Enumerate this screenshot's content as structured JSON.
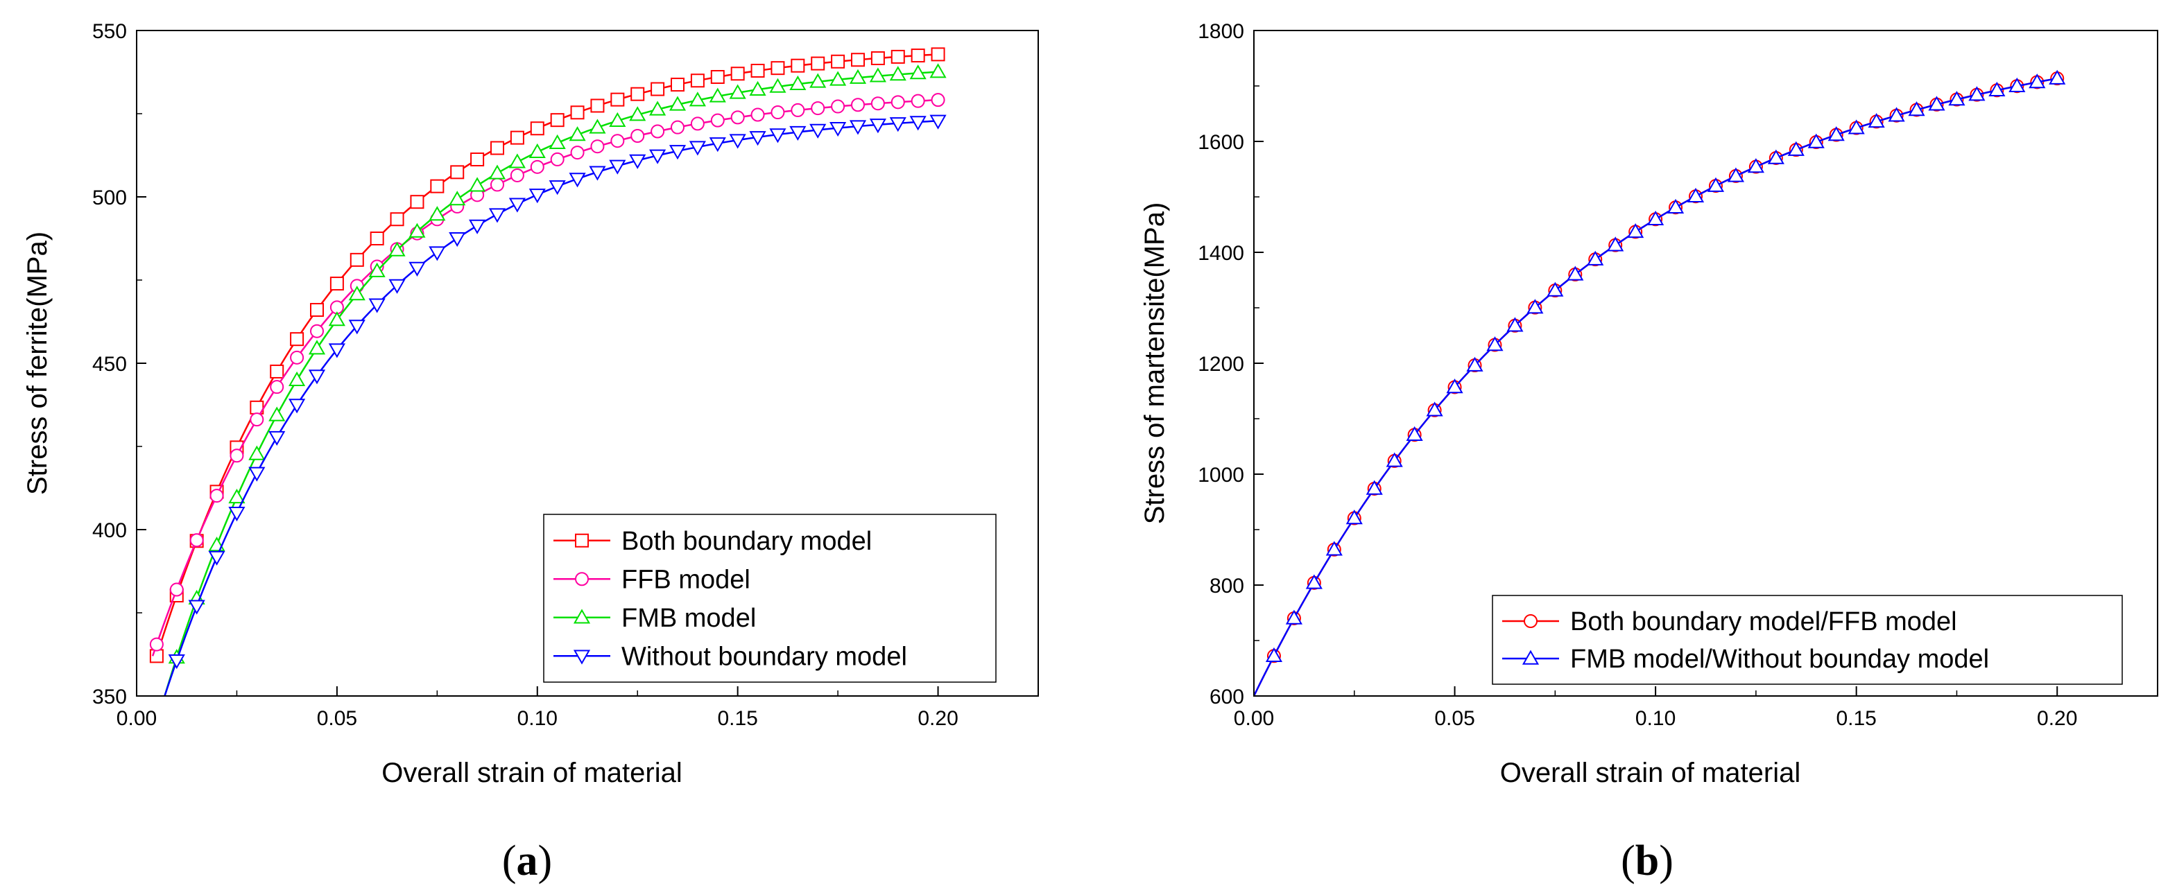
{
  "chart_data": [
    {
      "type": "line",
      "panel_label": "(a)",
      "panel_letter": "a",
      "xlabel": "Overall strain of material",
      "ylabel": "Stress of ferrite(MPa)",
      "xlim": [
        0.0,
        0.225
      ],
      "ylim": [
        350,
        550
      ],
      "xticks": [
        0.0,
        0.05,
        0.1,
        0.15,
        0.2
      ],
      "xtick_labels": [
        "0.00",
        "0.05",
        "0.10",
        "0.15",
        "0.20"
      ],
      "yticks": [
        350,
        400,
        450,
        500,
        550
      ],
      "ytick_labels": [
        "350",
        "400",
        "450",
        "500",
        "550"
      ],
      "legend_position": "lower-right",
      "series": [
        {
          "name": "Both boundary model",
          "color": "#ff0000",
          "marker": "square",
          "x0": 0.005,
          "y0": 362,
          "ymax": 546,
          "ycurve": 184,
          "rate": 0.048
        },
        {
          "name": "FFB model",
          "color": "#ff00a0",
          "marker": "circle",
          "x0": 0.004,
          "y0": 362,
          "ymax": 532,
          "ycurve": 170,
          "rate": 0.048
        },
        {
          "name": "FMB model",
          "color": "#00e000",
          "marker": "triangle-up",
          "x0": 0.007,
          "y0": 350,
          "ymax": 541,
          "ycurve": 191,
          "rate": 0.048
        },
        {
          "name": "Without boundary model",
          "color": "#0000ff",
          "marker": "triangle-down",
          "x0": 0.007,
          "y0": 350,
          "ymax": 526,
          "ycurve": 176,
          "rate": 0.048
        }
      ]
    },
    {
      "type": "line",
      "panel_label": "(b)",
      "panel_letter": "b",
      "xlabel": "Overall strain of material",
      "ylabel": "Stress of martensite(MPa)",
      "xlim": [
        0.0,
        0.225
      ],
      "ylim": [
        600,
        1800
      ],
      "xticks": [
        0.0,
        0.05,
        0.1,
        0.15,
        0.2
      ],
      "xtick_labels": [
        "0.00",
        "0.05",
        "0.10",
        "0.15",
        "0.20"
      ],
      "yticks": [
        600,
        800,
        1000,
        1200,
        1400,
        1600,
        1800
      ],
      "ytick_labels": [
        "600",
        "800",
        "1000",
        "1200",
        "1400",
        "1600",
        "1800"
      ],
      "legend_position": "lower-right",
      "series": [
        {
          "name": "Both boundary model/FFB model",
          "color": "#ff0000",
          "marker": "circle",
          "x0": 0.0,
          "y0": 600,
          "ymax": 1820,
          "ycurve": 1220,
          "rate": 0.082
        },
        {
          "name": "FMB model/Without bounday model",
          "color": "#0000ff",
          "marker": "triangle-up",
          "x0": 0.0,
          "y0": 600,
          "ymax": 1820,
          "ycurve": 1220,
          "rate": 0.082
        }
      ]
    }
  ]
}
